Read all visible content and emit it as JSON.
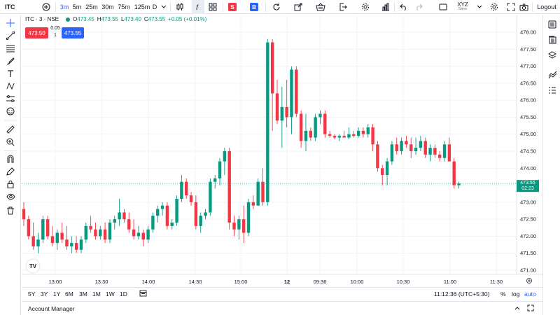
{
  "toolbar": {
    "symbol": "ITC",
    "timeframes": [
      "3m",
      "5m",
      "25m",
      "30m",
      "75m",
      "125m",
      "D"
    ],
    "active_timeframe": "3m",
    "sell_badge": "S",
    "buy_badge": "B",
    "account_name": "XYZ",
    "account_sub": "Save",
    "logout": "Logout"
  },
  "legend": {
    "title": "ITC · 3 · NSE",
    "open_label": "O",
    "open": "473.45",
    "high_label": "H",
    "high": "473.55",
    "low_label": "L",
    "low": "473.40",
    "close_label": "C",
    "close": "473.55",
    "change": "+0.05 (+0.01%)"
  },
  "order": {
    "sell_price": "473.50",
    "buy_price": "473.55",
    "spread": "0.05",
    "quantity": "1"
  },
  "colors": {
    "up": "#089981",
    "down": "#f23645",
    "accent": "#2962ff"
  },
  "chart_data": {
    "type": "candlestick",
    "y_ticks": [
      "478.00",
      "477.50",
      "477.00",
      "476.50",
      "476.00",
      "475.50",
      "475.00",
      "474.50",
      "474.00",
      "473.50",
      "473.00",
      "472.50",
      "472.00",
      "471.50",
      "471.00"
    ],
    "x_ticks": [
      "13:00",
      "13:30",
      "14:00",
      "14:30",
      "15:00",
      "12",
      "09:36",
      "10:00",
      "10:30",
      "11:00",
      "11:30"
    ],
    "last_price": "473.55",
    "countdown": "02:23",
    "candles": [
      {
        "o": 472.8,
        "h": 473.0,
        "l": 472.3,
        "c": 472.5
      },
      {
        "o": 472.5,
        "h": 472.6,
        "l": 471.9,
        "c": 472.0
      },
      {
        "o": 472.0,
        "h": 472.4,
        "l": 471.6,
        "c": 471.7
      },
      {
        "o": 471.7,
        "h": 472.1,
        "l": 471.5,
        "c": 471.9
      },
      {
        "o": 471.9,
        "h": 472.6,
        "l": 471.8,
        "c": 472.5
      },
      {
        "o": 472.5,
        "h": 472.6,
        "l": 471.9,
        "c": 472.0
      },
      {
        "o": 472.0,
        "h": 472.3,
        "l": 471.7,
        "c": 471.8
      },
      {
        "o": 471.8,
        "h": 472.2,
        "l": 471.6,
        "c": 472.1
      },
      {
        "o": 472.1,
        "h": 472.4,
        "l": 471.8,
        "c": 471.9
      },
      {
        "o": 471.9,
        "h": 472.3,
        "l": 471.6,
        "c": 471.7
      },
      {
        "o": 471.7,
        "h": 472.0,
        "l": 471.5,
        "c": 471.8
      },
      {
        "o": 471.8,
        "h": 472.0,
        "l": 471.5,
        "c": 471.6
      },
      {
        "o": 471.6,
        "h": 472.0,
        "l": 471.5,
        "c": 471.9
      },
      {
        "o": 471.9,
        "h": 472.4,
        "l": 471.8,
        "c": 472.3
      },
      {
        "o": 472.3,
        "h": 472.6,
        "l": 472.1,
        "c": 472.2
      },
      {
        "o": 472.2,
        "h": 472.4,
        "l": 471.9,
        "c": 472.0
      },
      {
        "o": 472.0,
        "h": 472.3,
        "l": 471.9,
        "c": 472.2
      },
      {
        "o": 472.2,
        "h": 472.4,
        "l": 471.8,
        "c": 471.9
      },
      {
        "o": 471.9,
        "h": 472.5,
        "l": 471.8,
        "c": 472.4
      },
      {
        "o": 472.4,
        "h": 472.6,
        "l": 472.2,
        "c": 472.5
      },
      {
        "o": 472.5,
        "h": 473.1,
        "l": 472.3,
        "c": 472.7
      },
      {
        "o": 472.7,
        "h": 472.8,
        "l": 472.4,
        "c": 472.5
      },
      {
        "o": 472.5,
        "h": 472.7,
        "l": 472.1,
        "c": 472.2
      },
      {
        "o": 472.2,
        "h": 472.5,
        "l": 471.9,
        "c": 472.0
      },
      {
        "o": 472.0,
        "h": 472.3,
        "l": 471.9,
        "c": 472.1
      },
      {
        "o": 472.1,
        "h": 472.2,
        "l": 471.7,
        "c": 471.9
      },
      {
        "o": 471.9,
        "h": 472.3,
        "l": 471.8,
        "c": 472.2
      },
      {
        "o": 472.2,
        "h": 472.7,
        "l": 472.1,
        "c": 472.6
      },
      {
        "o": 472.6,
        "h": 472.9,
        "l": 472.4,
        "c": 472.8
      },
      {
        "o": 472.8,
        "h": 473.0,
        "l": 472.6,
        "c": 472.9
      },
      {
        "o": 472.9,
        "h": 473.0,
        "l": 472.2,
        "c": 472.3
      },
      {
        "o": 472.3,
        "h": 472.5,
        "l": 472.2,
        "c": 472.4
      },
      {
        "o": 472.4,
        "h": 473.2,
        "l": 472.3,
        "c": 473.1
      },
      {
        "o": 473.1,
        "h": 473.8,
        "l": 473.0,
        "c": 473.6
      },
      {
        "o": 473.6,
        "h": 473.7,
        "l": 473.1,
        "c": 473.2
      },
      {
        "o": 473.2,
        "h": 473.3,
        "l": 472.9,
        "c": 473.0
      },
      {
        "o": 473.0,
        "h": 473.2,
        "l": 472.2,
        "c": 472.3
      },
      {
        "o": 472.3,
        "h": 472.7,
        "l": 472.1,
        "c": 472.6
      },
      {
        "o": 472.6,
        "h": 472.8,
        "l": 472.5,
        "c": 472.7
      },
      {
        "o": 472.7,
        "h": 473.7,
        "l": 472.6,
        "c": 473.6
      },
      {
        "o": 473.6,
        "h": 473.8,
        "l": 473.4,
        "c": 473.7
      },
      {
        "o": 473.7,
        "h": 474.3,
        "l": 473.5,
        "c": 474.2
      },
      {
        "o": 474.2,
        "h": 474.6,
        "l": 473.8,
        "c": 474.5
      },
      {
        "o": 474.5,
        "h": 474.6,
        "l": 472.2,
        "c": 472.4
      },
      {
        "o": 472.4,
        "h": 472.6,
        "l": 472.0,
        "c": 472.2
      },
      {
        "o": 472.2,
        "h": 472.6,
        "l": 471.9,
        "c": 472.5
      },
      {
        "o": 472.5,
        "h": 472.9,
        "l": 471.8,
        "c": 472.1
      },
      {
        "o": 472.1,
        "h": 473.1,
        "l": 472.0,
        "c": 473.0
      },
      {
        "o": 473.0,
        "h": 473.2,
        "l": 472.8,
        "c": 472.9
      },
      {
        "o": 472.9,
        "h": 473.7,
        "l": 472.9,
        "c": 473.6
      },
      {
        "o": 473.6,
        "h": 474.0,
        "l": 472.9,
        "c": 473.0
      },
      {
        "o": 473.0,
        "h": 477.8,
        "l": 472.9,
        "c": 477.7
      },
      {
        "o": 477.7,
        "h": 477.8,
        "l": 475.1,
        "c": 476.2
      },
      {
        "o": 476.2,
        "h": 476.6,
        "l": 475.3,
        "c": 475.4
      },
      {
        "o": 475.4,
        "h": 476.4,
        "l": 474.6,
        "c": 475.8
      },
      {
        "o": 475.8,
        "h": 476.6,
        "l": 475.2,
        "c": 475.5
      },
      {
        "o": 475.5,
        "h": 477.0,
        "l": 475.0,
        "c": 476.9
      },
      {
        "o": 476.9,
        "h": 477.0,
        "l": 475.5,
        "c": 475.6
      },
      {
        "o": 475.6,
        "h": 475.7,
        "l": 474.6,
        "c": 474.8
      },
      {
        "o": 474.8,
        "h": 475.6,
        "l": 474.5,
        "c": 475.1
      },
      {
        "o": 475.1,
        "h": 475.2,
        "l": 474.8,
        "c": 474.9
      },
      {
        "o": 474.9,
        "h": 475.6,
        "l": 474.8,
        "c": 475.5
      },
      {
        "o": 475.5,
        "h": 475.7,
        "l": 475.3,
        "c": 475.6
      },
      {
        "o": 475.6,
        "h": 475.7,
        "l": 474.9,
        "c": 475.0
      },
      {
        "o": 475.0,
        "h": 475.1,
        "l": 474.9,
        "c": 474.95
      },
      {
        "o": 474.95,
        "h": 475.0,
        "l": 474.85,
        "c": 474.9
      },
      {
        "o": 474.9,
        "h": 475.0,
        "l": 474.8,
        "c": 474.95
      },
      {
        "o": 474.95,
        "h": 475.1,
        "l": 474.9,
        "c": 474.9
      },
      {
        "o": 474.9,
        "h": 475.2,
        "l": 474.85,
        "c": 475.0
      },
      {
        "o": 475.0,
        "h": 475.1,
        "l": 474.9,
        "c": 474.95
      },
      {
        "o": 474.95,
        "h": 475.2,
        "l": 474.9,
        "c": 475.1
      },
      {
        "o": 475.1,
        "h": 475.2,
        "l": 474.9,
        "c": 475.0
      },
      {
        "o": 475.0,
        "h": 475.3,
        "l": 474.9,
        "c": 475.2
      },
      {
        "o": 475.2,
        "h": 475.3,
        "l": 474.5,
        "c": 474.7
      },
      {
        "o": 474.7,
        "h": 474.8,
        "l": 473.9,
        "c": 474.0
      },
      {
        "o": 474.0,
        "h": 474.1,
        "l": 473.5,
        "c": 473.8
      },
      {
        "o": 473.8,
        "h": 474.3,
        "l": 473.5,
        "c": 474.2
      },
      {
        "o": 474.2,
        "h": 474.8,
        "l": 474.1,
        "c": 474.7
      },
      {
        "o": 474.7,
        "h": 474.9,
        "l": 474.4,
        "c": 474.5
      },
      {
        "o": 474.5,
        "h": 474.9,
        "l": 474.4,
        "c": 474.8
      },
      {
        "o": 474.8,
        "h": 474.95,
        "l": 474.6,
        "c": 474.7
      },
      {
        "o": 474.7,
        "h": 474.9,
        "l": 474.3,
        "c": 474.5
      },
      {
        "o": 474.5,
        "h": 474.9,
        "l": 474.4,
        "c": 474.6
      },
      {
        "o": 474.6,
        "h": 474.95,
        "l": 474.5,
        "c": 474.8
      },
      {
        "o": 474.8,
        "h": 474.9,
        "l": 474.3,
        "c": 474.4
      },
      {
        "o": 474.4,
        "h": 474.7,
        "l": 474.2,
        "c": 474.6
      },
      {
        "o": 474.6,
        "h": 474.7,
        "l": 474.3,
        "c": 474.4
      },
      {
        "o": 474.4,
        "h": 474.5,
        "l": 474.2,
        "c": 474.3
      },
      {
        "o": 474.3,
        "h": 474.8,
        "l": 474.2,
        "c": 474.7
      },
      {
        "o": 474.7,
        "h": 474.9,
        "l": 474.2,
        "c": 474.2
      },
      {
        "o": 474.2,
        "h": 474.3,
        "l": 473.4,
        "c": 473.5
      },
      {
        "o": 473.5,
        "h": 473.6,
        "l": 473.4,
        "c": 473.55
      }
    ]
  },
  "bottom": {
    "ranges": [
      "5Y",
      "3Y",
      "1Y",
      "6M",
      "3M",
      "1M",
      "1W",
      "1D"
    ],
    "clock": "11:12:36 (UTC+5:30)",
    "pct": "%",
    "log": "log",
    "auto": "auto"
  },
  "account_manager": {
    "title": "Account Manager"
  },
  "watermark": "TV"
}
